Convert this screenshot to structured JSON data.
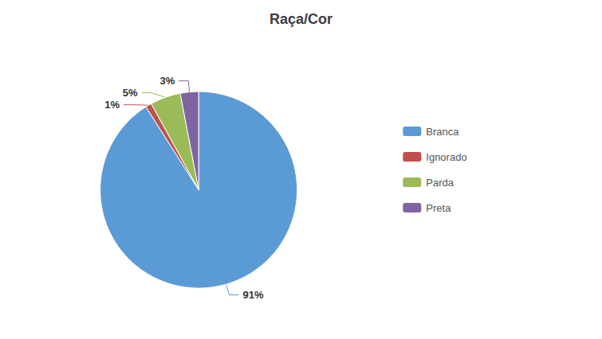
{
  "chart_data": {
    "type": "pie",
    "title": "Raça/Cor",
    "categories": [
      "Branca",
      "Ignorado",
      "Parda",
      "Preta"
    ],
    "values": [
      91,
      1,
      5,
      3
    ],
    "value_labels": [
      "91%",
      "1%",
      "5%",
      "3%"
    ],
    "colors": [
      "#5B9BD5",
      "#C0504D",
      "#9BBB59",
      "#8064A2"
    ],
    "data_labels": true,
    "legend": "right"
  }
}
